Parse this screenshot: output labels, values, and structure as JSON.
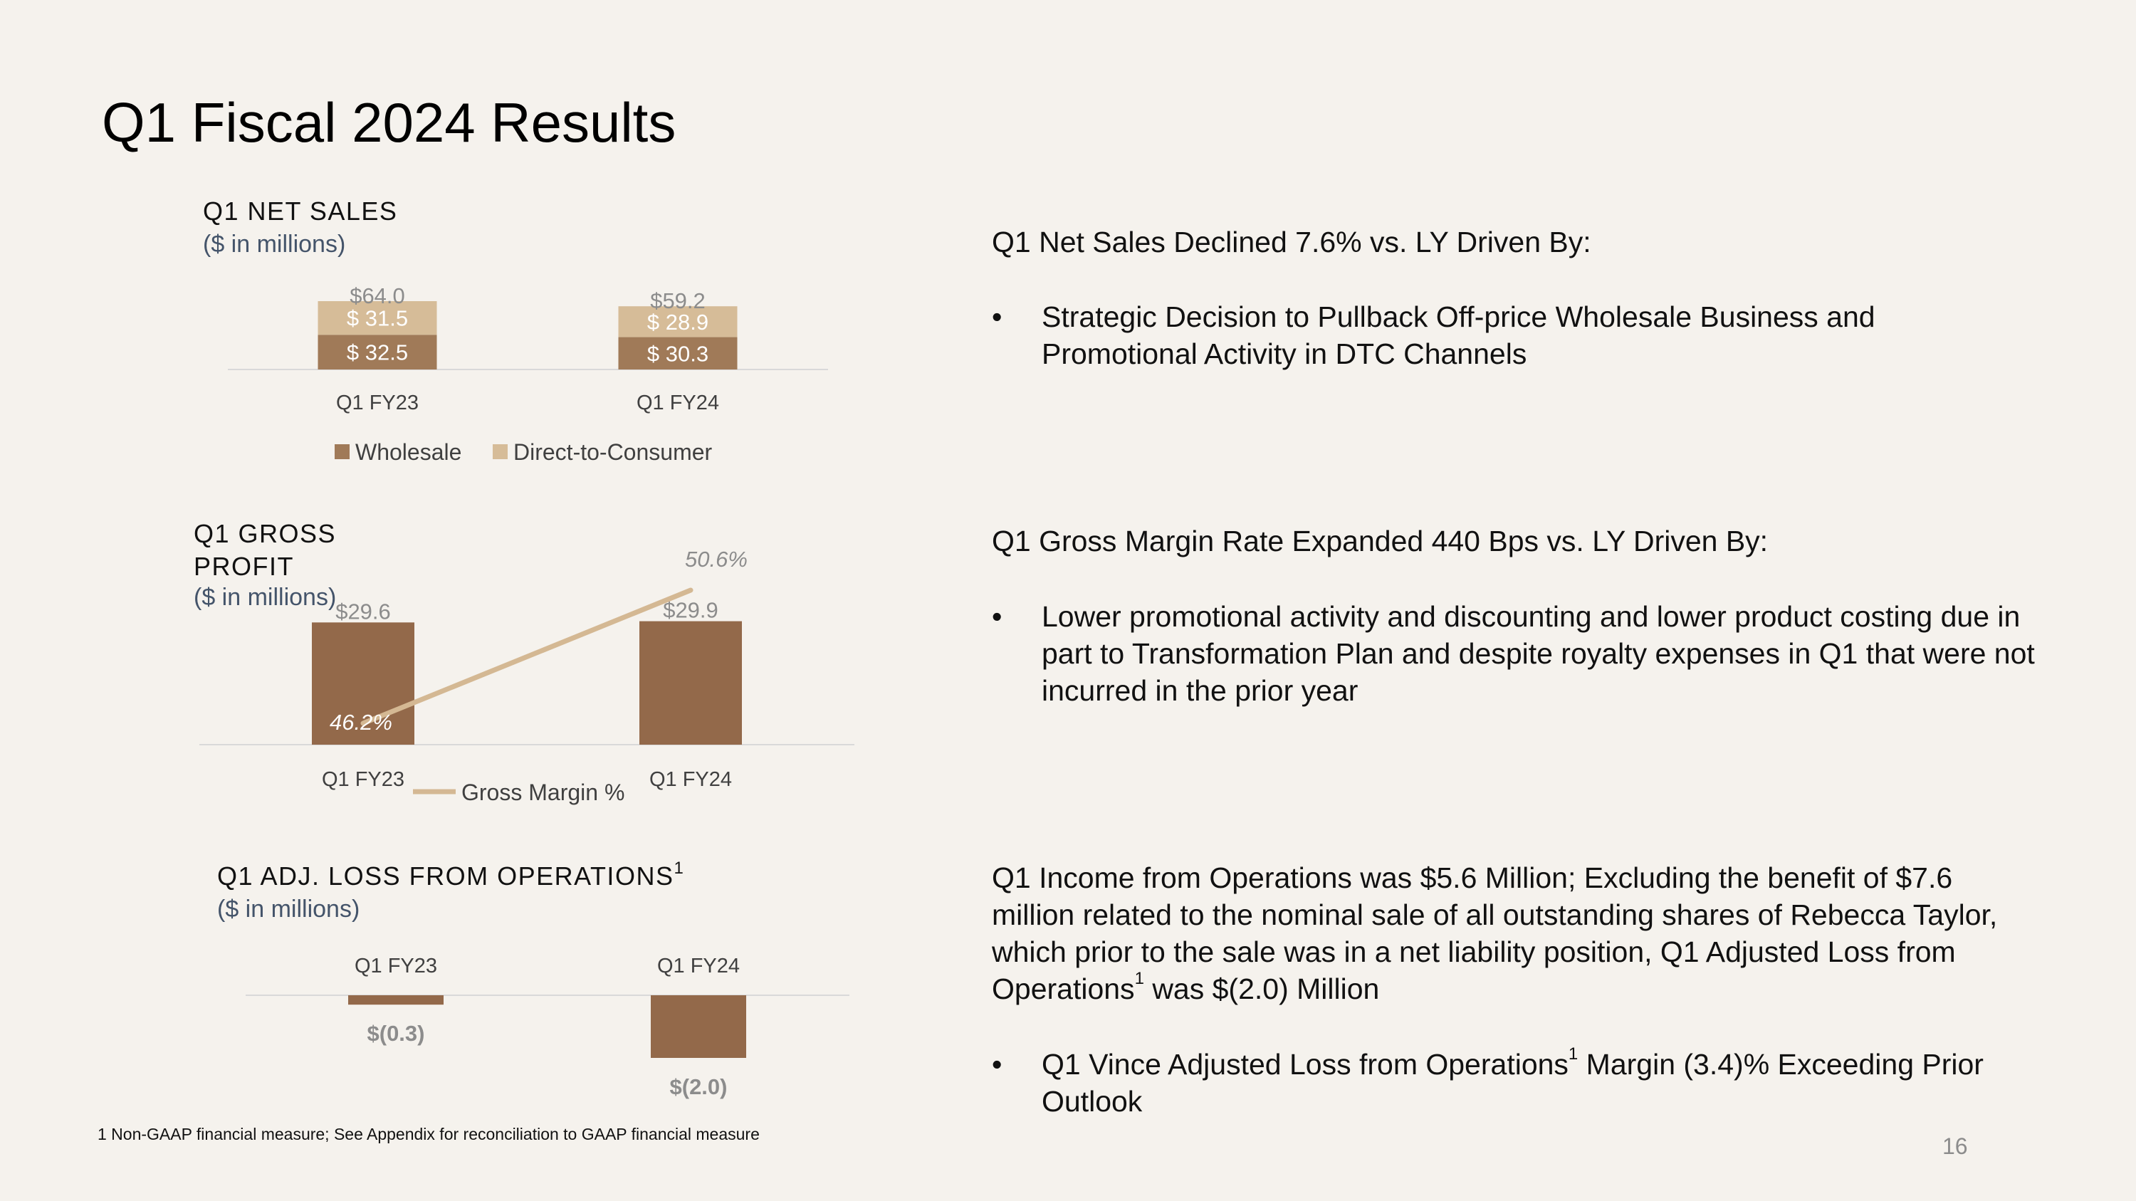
{
  "slide": {
    "title": "Q1 Fiscal 2024 Results",
    "footnote": "1 Non-GAAP financial measure; See Appendix for reconciliation to GAAP financial measure",
    "page_number": "16"
  },
  "colors": {
    "wholesale": "#a07a58",
    "dtc": "#d6bc98",
    "bar": "#93694a",
    "line": "#d4b893",
    "background": "#f5f2ed"
  },
  "net_sales": {
    "title": "Q1 NET SALES",
    "subtitle": "($ in millions)"
  },
  "gross_profit": {
    "title": "Q1 GROSS PROFIT",
    "subtitle": "($ in millions)"
  },
  "adj_loss": {
    "title": "Q1 ADJ. LOSS FROM OPERATIONS",
    "title_sup": "1",
    "subtitle": "($ in millions)"
  },
  "commentary": {
    "net_sales": {
      "heading": "Q1 Net Sales Declined 7.6% vs. LY Driven By:",
      "bullet": "Strategic Decision to Pullback Off-price Wholesale Business and Promotional Activity in DTC Channels"
    },
    "gross_margin": {
      "heading": "Q1 Gross Margin Rate Expanded 440 Bps vs. LY Driven By:",
      "bullet": "Lower promotional activity and discounting and lower product costing due in part to Transformation Plan and despite royalty expenses in Q1 that were not incurred in the prior year"
    },
    "operations": {
      "heading_part1": "Q1 Income from Operations was $5.6 Million; Excluding the benefit of $7.6 million related to the nominal sale of all outstanding shares of Rebecca Taylor, which prior to the sale was in a net liability position, Q1 Adjusted Loss from Operations",
      "heading_sup": "1",
      "heading_part2": " was $(2.0) Million",
      "bullet_part1": "Q1 Vince Adjusted Loss from Operations",
      "bullet_sup": "1",
      "bullet_part2": " Margin (3.4)% Exceeding Prior Outlook"
    },
    "bullet_char": "•"
  },
  "chart_data": [
    {
      "type": "bar",
      "stacked": true,
      "categories": [
        "Q1 FY23",
        "Q1 FY24"
      ],
      "series": [
        {
          "name": "Wholesale",
          "values": [
            32.5,
            30.3
          ],
          "labels": [
            "$ 32.5",
            "$ 30.3"
          ]
        },
        {
          "name": "Direct-to-Consumer",
          "values": [
            31.5,
            28.9
          ],
          "labels": [
            "$ 31.5",
            "$ 28.9"
          ]
        }
      ],
      "totals": [
        64.0,
        59.2
      ],
      "total_labels": [
        "$64.0",
        "$59.2"
      ],
      "legend": "bottom"
    },
    {
      "type": "bar",
      "categories": [
        "Q1 FY23",
        "Q1 FY24"
      ],
      "values": [
        29.6,
        29.9
      ],
      "value_labels": [
        "$29.6",
        "$29.9"
      ],
      "line_series": {
        "name": "Gross Margin %",
        "values": [
          46.2,
          50.6
        ],
        "labels": [
          "46.2%",
          "50.6%"
        ]
      },
      "legend": "bottom"
    },
    {
      "type": "bar",
      "categories": [
        "Q1 FY23",
        "Q1 FY24"
      ],
      "values": [
        -0.3,
        -2.0
      ],
      "value_labels": [
        "$(0.3)",
        "$(2.0)"
      ]
    }
  ]
}
